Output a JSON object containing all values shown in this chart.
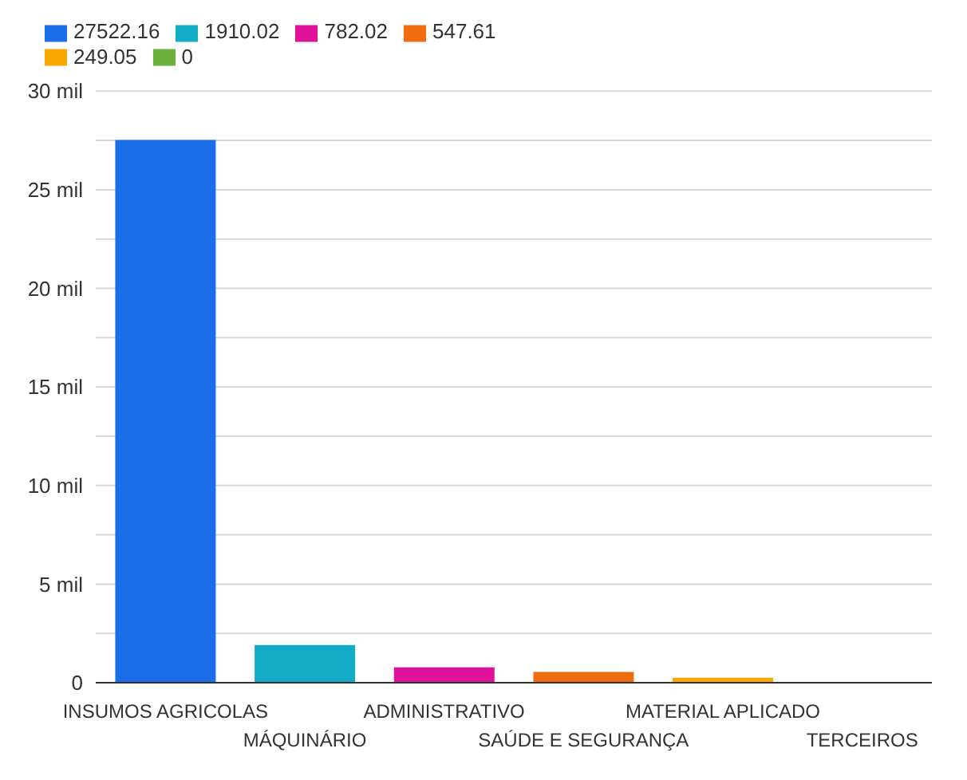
{
  "chart_data": {
    "type": "bar",
    "stacked": true,
    "categories": [
      "INSUMOS AGRICOLAS",
      "MÁQUINÁRIO",
      "ADMINISTRATIVO",
      "SAÚDE E SEGURANÇA",
      "MATERIAL APLICADO",
      "TERCEIROS"
    ],
    "series": [
      {
        "name": "27522.16",
        "color": "#1a6ee8",
        "values": [
          27.52216,
          null,
          null,
          null,
          null,
          null
        ]
      },
      {
        "name": "1910.02",
        "color": "#12acc6",
        "values": [
          null,
          1.91002,
          null,
          null,
          null,
          null
        ]
      },
      {
        "name": "782.02",
        "color": "#e0119a",
        "values": [
          null,
          null,
          0.78202,
          null,
          null,
          null
        ]
      },
      {
        "name": "547.61",
        "color": "#f06d0f",
        "values": [
          null,
          null,
          null,
          0.54761,
          null,
          null
        ]
      },
      {
        "name": "249.05",
        "color": "#f9a600",
        "values": [
          null,
          null,
          null,
          null,
          0.24905,
          null
        ]
      },
      {
        "name": "0",
        "color": "#6ab03a",
        "values": [
          null,
          null,
          null,
          null,
          null,
          0
        ]
      }
    ],
    "ylim": [
      0,
      30
    ],
    "yticks": [
      0,
      {
        "value": 2.5,
        "label": null
      },
      {
        "value": 5,
        "label": "5 mil"
      },
      {
        "value": 7.5,
        "label": null
      },
      {
        "value": 10,
        "label": "10 mil"
      },
      {
        "value": 12.5,
        "label": null
      },
      {
        "value": 15,
        "label": "15 mil"
      },
      {
        "value": 17.5,
        "label": null
      },
      {
        "value": 20,
        "label": "20 mil"
      },
      {
        "value": 22.5,
        "label": null
      },
      {
        "value": 25,
        "label": "25 mil"
      },
      {
        "value": 27.5,
        "label": null
      },
      {
        "value": 30,
        "label": "30 mil"
      }
    ],
    "grid": "y",
    "legend": "top left"
  }
}
